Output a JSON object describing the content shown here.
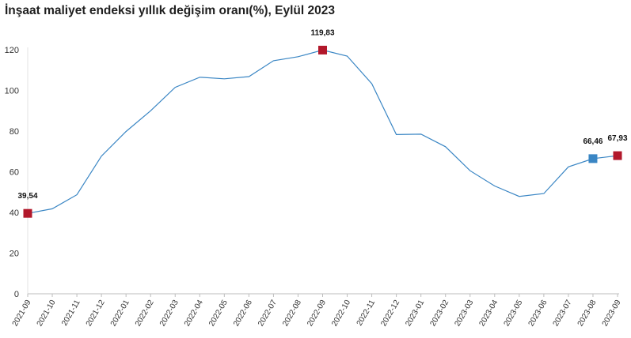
{
  "chart_data": {
    "type": "line",
    "title": "İnşaat maliyet endeksi yıllık değişim oranı(%), Eylül 2023",
    "xlabel": "",
    "ylabel": "",
    "ylim": [
      0,
      120
    ],
    "yticks": [
      "0",
      "20",
      "40",
      "60",
      "80",
      "100",
      "120"
    ],
    "grid": false,
    "legend": "none",
    "categories": [
      "2021-09",
      "2021-10",
      "2021-11",
      "2021-12",
      "2022-01",
      "2022-02",
      "2022-03",
      "2022-04",
      "2022-05",
      "2022-06",
      "2022-07",
      "2022-08",
      "2022-09",
      "2022-10",
      "2022-11",
      "2022-12",
      "2023-01",
      "2023-02",
      "2023-03",
      "2023-04",
      "2023-05",
      "2023-06",
      "2023-07",
      "2023-08",
      "2023-09"
    ],
    "series": [
      {
        "values": [
          39.54,
          41.8,
          48.7,
          67.7,
          79.8,
          90.0,
          101.5,
          106.5,
          105.7,
          106.8,
          114.6,
          116.6,
          119.83,
          116.9,
          103.3,
          78.3,
          78.5,
          72.3,
          60.5,
          53.0,
          47.9,
          49.3,
          62.4,
          66.46,
          67.93
        ]
      }
    ],
    "highlights": [
      {
        "index": 0,
        "label": "39,54",
        "color": "#b2182b"
      },
      {
        "index": 12,
        "label": "119,83",
        "color": "#b2182b"
      },
      {
        "index": 23,
        "label": "66,46",
        "color": "#3a86c4"
      },
      {
        "index": 24,
        "label": "67,93",
        "color": "#b2182b"
      }
    ],
    "line_color": "#3a86c4"
  }
}
